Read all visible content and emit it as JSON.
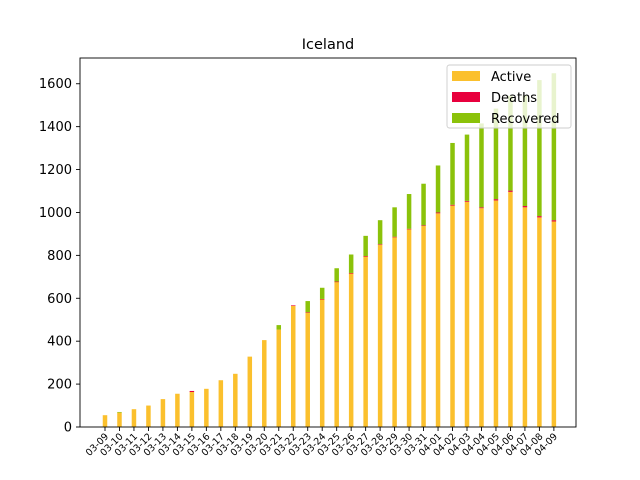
{
  "chart_data": {
    "type": "bar",
    "stacked": true,
    "title": "Iceland",
    "xlabel": "",
    "ylabel": "",
    "ylim": [
      0,
      1720
    ],
    "yticks": [
      0,
      200,
      400,
      600,
      800,
      1000,
      1200,
      1400,
      1600
    ],
    "grid": false,
    "legend_position": "top-right",
    "categories": [
      "03-09",
      "03-10",
      "03-11",
      "03-12",
      "03-13",
      "03-14",
      "03-15",
      "03-16",
      "03-17",
      "03-18",
      "03-19",
      "03-20",
      "03-21",
      "03-22",
      "03-23",
      "03-24",
      "03-25",
      "03-26",
      "03-27",
      "03-28",
      "03-29",
      "03-30",
      "03-31",
      "04-01",
      "04-02",
      "04-03",
      "04-04",
      "04-05",
      "04-06",
      "04-07",
      "04-08",
      "04-09"
    ],
    "series": [
      {
        "name": "Active",
        "color": "#fbc02d",
        "values": [
          55,
          67,
          83,
          100,
          130,
          155,
          163,
          178,
          218,
          248,
          328,
          405,
          454,
          566,
          534,
          595,
          676,
          716,
          795,
          850,
          885,
          922,
          938,
          996,
          1032,
          1050,
          1020,
          1056,
          1096,
          1024,
          977,
          958
        ]
      },
      {
        "name": "Deaths",
        "color": "#e8003d",
        "values": [
          0,
          0,
          0,
          0,
          0,
          0,
          5,
          0,
          0,
          0,
          0,
          0,
          0,
          1,
          1,
          2,
          2,
          2,
          2,
          2,
          2,
          2,
          2,
          4,
          4,
          4,
          4,
          6,
          6,
          6,
          6,
          6
        ]
      },
      {
        "name": "Recovered",
        "color": "#8bc20a",
        "values": [
          0,
          3,
          0,
          0,
          0,
          0,
          0,
          0,
          0,
          0,
          0,
          0,
          21,
          0,
          52,
          52,
          62,
          86,
          94,
          112,
          137,
          162,
          194,
          219,
          288,
          309,
          391,
          422,
          442,
          516,
          634,
          685
        ]
      }
    ]
  }
}
